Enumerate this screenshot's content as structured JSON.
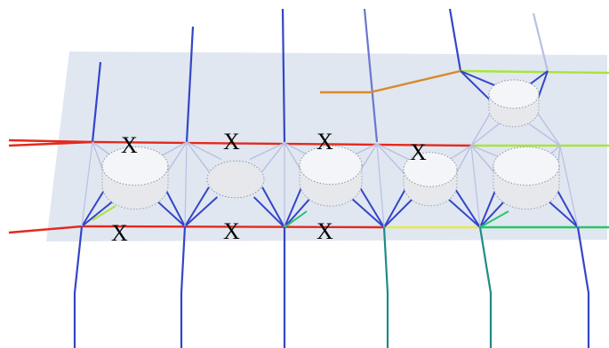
{
  "diagram": {
    "marks": [
      "X",
      "X",
      "X",
      "X",
      "X",
      "X",
      "X"
    ],
    "colors": {
      "sheet_fill": "#dbe3ee",
      "rail_red": "#e4291e",
      "rail_yellow": "#e7e84a",
      "rail_light_green": "#a7e53a",
      "rail_green": "#27c46a",
      "link_orange": "#d88a2e",
      "strut_blue": "#3346c8",
      "strut_pale": "#b9bfe2",
      "cylinder": "#e6e8ec",
      "teal": "#1d8c86"
    }
  }
}
